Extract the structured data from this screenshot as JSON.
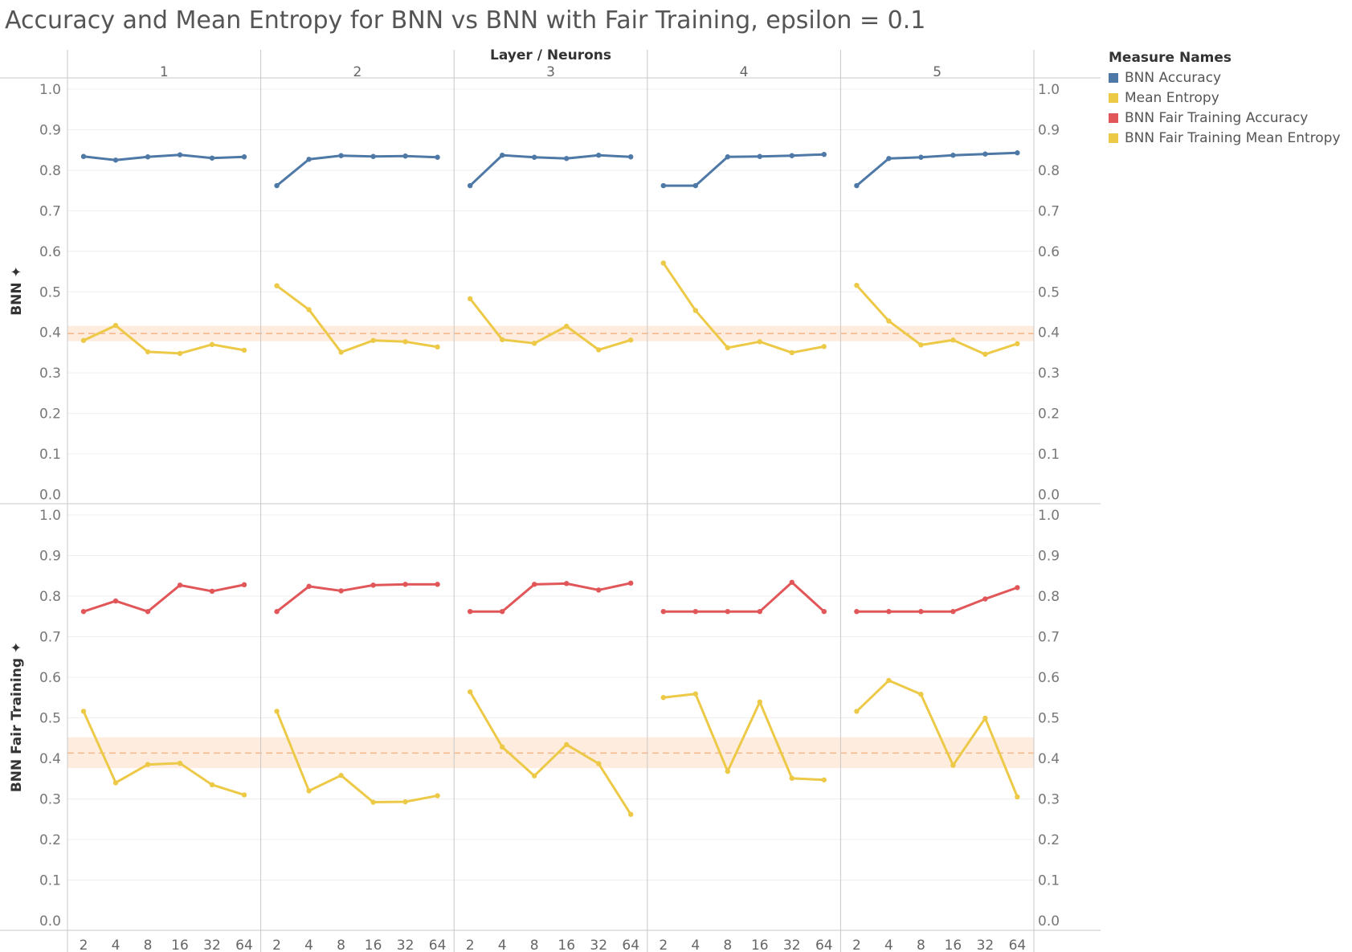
{
  "title": "Accuracy and Mean Entropy for BNN vs BNN with Fair Training, epsilon = 0.1",
  "legend": {
    "title": "Measure Names",
    "items": [
      {
        "label": "BNN Accuracy",
        "color": "#4e79a7"
      },
      {
        "label": "Mean Entropy",
        "color": "#edc948"
      },
      {
        "label": "BNN Fair Training Accuracy",
        "color": "#e15759"
      },
      {
        "label": "BNN Fair Training Mean Entropy",
        "color": "#edc948"
      }
    ]
  },
  "chart_data": {
    "type": "line",
    "column_header": "Layer  /  Neurons",
    "layers": [
      "1",
      "2",
      "3",
      "4",
      "5"
    ],
    "x_categories": [
      "2",
      "4",
      "8",
      "16",
      "32",
      "64"
    ],
    "y_ticks": [
      "0.0",
      "0.1",
      "0.2",
      "0.3",
      "0.4",
      "0.5",
      "0.6",
      "0.7",
      "0.8",
      "0.9",
      "1.0"
    ],
    "ylim": [
      0,
      1
    ],
    "grid": true,
    "legend_position": "right",
    "rows": [
      {
        "label": "BNN",
        "reference_line": {
          "value": 0.397,
          "band": [
            0.378,
            0.416
          ]
        },
        "series": [
          {
            "name": "BNN Accuracy",
            "color": "#4e79a7",
            "values": [
              [
                0.834,
                0.825,
                0.833,
                0.838,
                0.83,
                0.833
              ],
              [
                0.762,
                0.827,
                0.836,
                0.834,
                0.835,
                0.832
              ],
              [
                0.762,
                0.837,
                0.832,
                0.829,
                0.837,
                0.833
              ],
              [
                0.762,
                0.762,
                0.833,
                0.834,
                0.836,
                0.839
              ],
              [
                0.762,
                0.829,
                0.832,
                0.837,
                0.84,
                0.843
              ]
            ]
          },
          {
            "name": "Mean Entropy",
            "color": "#edc948",
            "values": [
              [
                0.38,
                0.417,
                0.352,
                0.348,
                0.37,
                0.356
              ],
              [
                0.515,
                0.456,
                0.351,
                0.38,
                0.377,
                0.364
              ],
              [
                0.483,
                0.382,
                0.373,
                0.415,
                0.357,
                0.381
              ],
              [
                0.571,
                0.454,
                0.362,
                0.377,
                0.35,
                0.365
              ],
              [
                0.516,
                0.428,
                0.369,
                0.381,
                0.346,
                0.372
              ]
            ]
          }
        ]
      },
      {
        "label": "BNN Fair Training",
        "reference_line": {
          "value": 0.413,
          "band": [
            0.376,
            0.452
          ]
        },
        "series": [
          {
            "name": "BNN Fair Training Accuracy",
            "color": "#e15759",
            "values": [
              [
                0.762,
                0.788,
                0.762,
                0.827,
                0.812,
                0.828
              ],
              [
                0.762,
                0.824,
                0.813,
                0.827,
                0.829,
                0.829
              ],
              [
                0.762,
                0.762,
                0.829,
                0.831,
                0.815,
                0.832
              ],
              [
                0.762,
                0.762,
                0.762,
                0.762,
                0.834,
                0.762
              ],
              [
                0.762,
                0.762,
                0.762,
                0.762,
                0.793,
                0.821
              ]
            ]
          },
          {
            "name": "BNN Fair Training Mean Entropy",
            "color": "#edc948",
            "values": [
              [
                0.516,
                0.34,
                0.385,
                0.388,
                0.335,
                0.31
              ],
              [
                0.516,
                0.32,
                0.358,
                0.292,
                0.293,
                0.308
              ],
              [
                0.564,
                0.428,
                0.357,
                0.434,
                0.387,
                0.262
              ],
              [
                0.55,
                0.559,
                0.368,
                0.539,
                0.351,
                0.347
              ],
              [
                0.516,
                0.592,
                0.558,
                0.383,
                0.499,
                0.305
              ]
            ]
          }
        ]
      }
    ]
  }
}
